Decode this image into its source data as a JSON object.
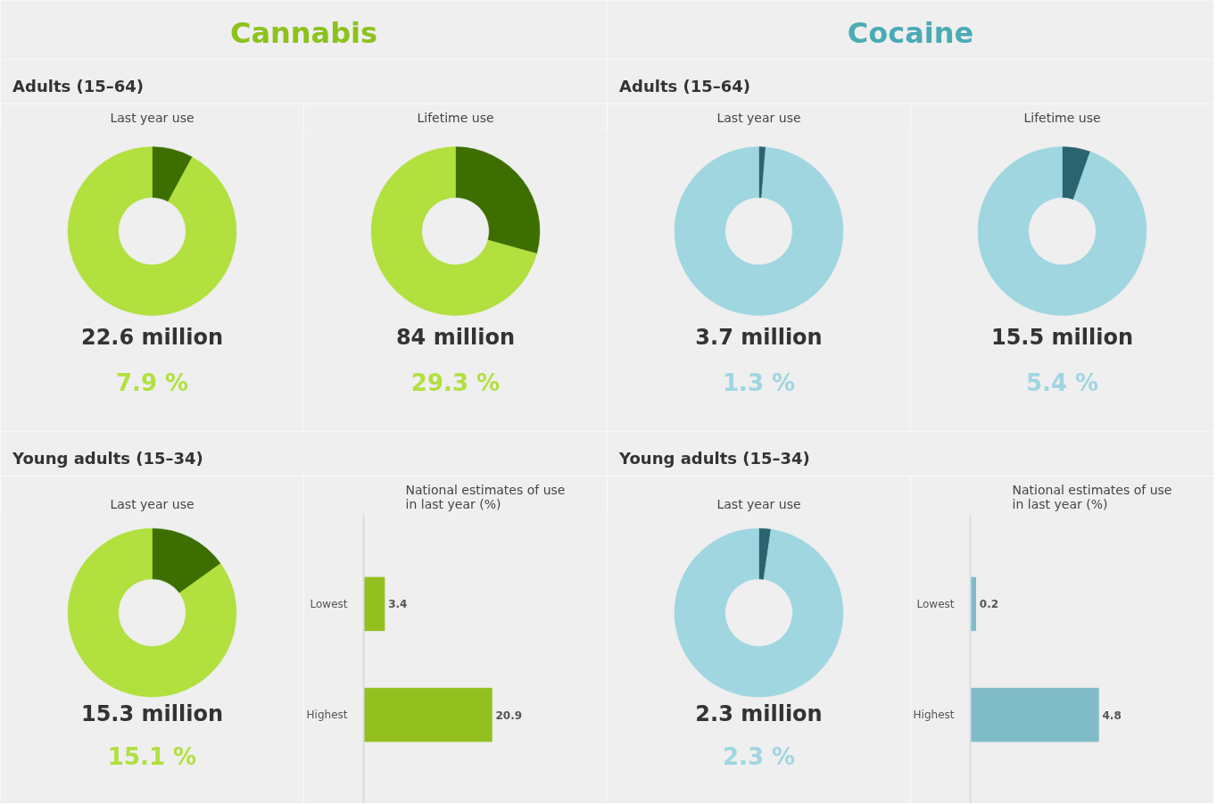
{
  "chart_data": [
    {
      "type": "other",
      "title": "Cannabis",
      "colors": [
        "#8cc21c"
      ]
    },
    {
      "type": "other",
      "title": "Adults (15–64)"
    },
    {
      "type": "donut",
      "title": "Last year use",
      "categories": [
        null,
        null
      ],
      "values": [
        7.9,
        92.1
      ],
      "colors": [
        "#3d6e00",
        "#b1e03f"
      ],
      "annotations": [
        "22.6 million",
        "7.9 %"
      ]
    },
    {
      "type": "donut",
      "title": "Lifetime use",
      "categories": [
        null,
        null
      ],
      "values": [
        29.3,
        70.7
      ],
      "colors": [
        "#3d6e00",
        "#b1e03f"
      ],
      "annotations": [
        "84 million",
        "29.3 %"
      ]
    },
    {
      "type": "other",
      "title": "Young adults (15–34)"
    },
    {
      "type": "donut",
      "title": "Last year use",
      "categories": [
        null,
        null
      ],
      "values": [
        15.1,
        84.9
      ],
      "colors": [
        "#3d6e00",
        "#b1e03f"
      ],
      "annotations": [
        "15.3 million",
        "15.1 %"
      ]
    },
    {
      "type": "bar",
      "orientation": "horizontal",
      "title": "National estimates of use in last year (%)",
      "categories": [
        "Lowest",
        "Highest"
      ],
      "values": [
        3.4,
        20.9
      ],
      "colors": [
        "#93c01f",
        "#93c01f"
      ],
      "data_labels": true
    },
    {
      "type": "other",
      "title": "Cocaine",
      "colors": [
        "#4aabb5"
      ]
    },
    {
      "type": "other",
      "title": "Adults (15–64)"
    },
    {
      "type": "donut",
      "title": "Last year use",
      "categories": [
        null,
        null
      ],
      "values": [
        1.3,
        98.7
      ],
      "colors": [
        "#2a6470",
        "#9fd6e0"
      ],
      "annotations": [
        "3.7 million",
        "1.3 %"
      ]
    },
    {
      "type": "donut",
      "title": "Lifetime use",
      "categories": [
        null,
        null
      ],
      "values": [
        5.4,
        94.6
      ],
      "colors": [
        "#2a6470",
        "#9fd6e0"
      ],
      "annotations": [
        "15.5 million",
        "5.4 %"
      ]
    },
    {
      "type": "other",
      "title": "Young adults (15–34)"
    },
    {
      "type": "donut",
      "title": "Last year use",
      "categories": [
        null,
        null
      ],
      "values": [
        2.3,
        97.7
      ],
      "colors": [
        "#2a6470",
        "#9fd6e0"
      ],
      "annotations": [
        "2.3 million",
        "2.3 %"
      ]
    },
    {
      "type": "bar",
      "orientation": "horizontal",
      "title": "National estimates of use in last year (%)",
      "categories": [
        "Lowest",
        "Highest"
      ],
      "values": [
        0.2,
        4.8
      ],
      "colors": [
        "#7fbcc8",
        "#7fbcc8"
      ],
      "data_labels": true
    }
  ]
}
